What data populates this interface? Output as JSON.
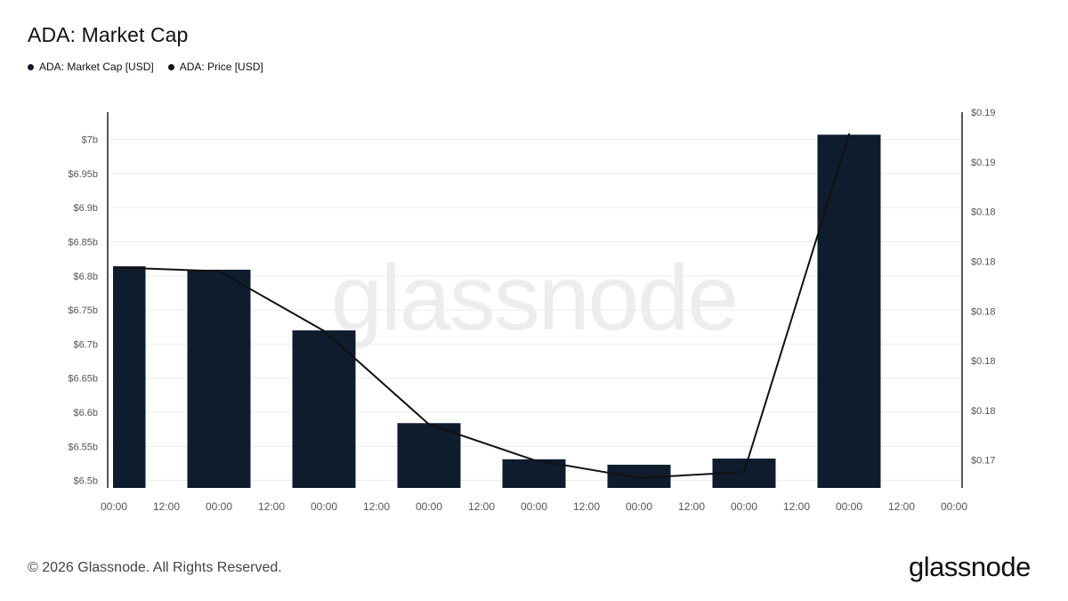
{
  "title": "ADA: Market Cap",
  "legend": [
    {
      "label": "ADA: Market Cap [USD]",
      "color": "#0e1b2c"
    },
    {
      "label": "ADA: Price [USD]",
      "color": "#111111"
    }
  ],
  "watermark": "glassnode",
  "footer": {
    "copyright": "© 2026 Glassnode. All Rights Reserved.",
    "logo": "glassnode"
  },
  "colors": {
    "bar": "#0f1c2e",
    "line": "#111111",
    "grid": "#ececec",
    "axis": "#222222",
    "tick_text": "#555555",
    "watermark": "#ededed"
  },
  "chart_data": {
    "type": "bar+line",
    "x_ticks": [
      "00:00",
      "12:00",
      "00:00",
      "12:00",
      "00:00",
      "12:00",
      "00:00",
      "12:00",
      "00:00",
      "12:00",
      "00:00",
      "12:00",
      "00:00",
      "12:00",
      "00:00",
      "12:00",
      "00:00"
    ],
    "x_range_hours": [
      0,
      192
    ],
    "left_axis": {
      "ticks": [
        "$6.5b",
        "$6.55b",
        "$6.6b",
        "$6.65b",
        "$6.7b",
        "$6.75b",
        "$6.8b",
        "$6.85b",
        "$6.9b",
        "$6.95b",
        "$7b"
      ],
      "tick_values": [
        6.5,
        6.55,
        6.6,
        6.65,
        6.7,
        6.75,
        6.8,
        6.85,
        6.9,
        6.95,
        7.0
      ],
      "range": [
        6.489,
        7.04
      ]
    },
    "right_axis": {
      "ticks": [
        "$0.17",
        "$0.18",
        "$0.18",
        "$0.18",
        "$0.18",
        "$0.18",
        "$0.19",
        "$0.19"
      ],
      "tick_values": [
        0.1725,
        0.175,
        0.1775,
        0.18,
        0.1825,
        0.185,
        0.1875,
        0.19
      ],
      "range": [
        0.1711,
        0.19
      ]
    },
    "series": [
      {
        "name": "ADA: Market Cap [USD]",
        "kind": "bar",
        "unit": "USD billions",
        "x_hours": [
          0,
          24,
          48,
          72,
          96,
          120,
          144,
          168
        ],
        "values": [
          6.814,
          6.809,
          6.72,
          6.584,
          6.531,
          6.523,
          6.532,
          7.007
        ]
      },
      {
        "name": "ADA: Price [USD]",
        "kind": "line",
        "unit": "USD",
        "x_hours": [
          0,
          24,
          48,
          72,
          96,
          120,
          144,
          168
        ],
        "values": [
          0.1822,
          0.182,
          0.179,
          0.1743,
          0.1725,
          0.1716,
          0.1719,
          0.1889
        ]
      }
    ],
    "grid": true,
    "legend_position": "top-left"
  }
}
